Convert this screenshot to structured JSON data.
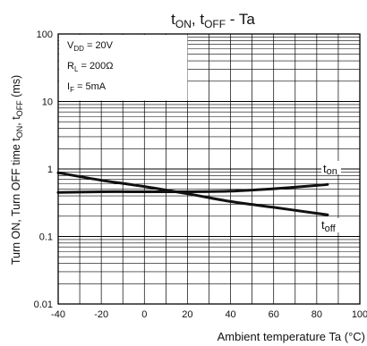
{
  "chart_data": {
    "type": "line",
    "title_main": "t",
    "title_sub_on": "ON",
    "title_mid": ", t",
    "title_sub_off": "OFF",
    "title_end": " - Ta",
    "xlabel": "Ambient temperature Ta (°C)",
    "ylabel_parts": [
      "Turn ON, Turn OFF time t",
      "ON",
      ", t",
      "OFF",
      " (ms)"
    ],
    "x_ticks": [
      -40,
      -20,
      0,
      20,
      40,
      60,
      80,
      100
    ],
    "y_ticks": [
      0.01,
      0.1,
      1,
      10,
      100
    ],
    "y_tick_labels": [
      "0.01",
      "0.1",
      "1",
      "10",
      "100"
    ],
    "xlim": [
      -40,
      100
    ],
    "ylim": [
      0.01,
      100
    ],
    "y_scale": "log",
    "grid": true,
    "conditions": [
      {
        "base": "V",
        "sub": "DD",
        "rest": " = 20V"
      },
      {
        "base": "R",
        "sub": "L",
        "rest": " = 200Ω"
      },
      {
        "base": "I",
        "sub": "F",
        "rest": " = 5mA"
      }
    ],
    "series": [
      {
        "name": "t_on",
        "label_base": "t",
        "label_sub": "on",
        "x": [
          -40,
          -20,
          0,
          20,
          40,
          60,
          80,
          85
        ],
        "values": [
          0.45,
          0.46,
          0.46,
          0.46,
          0.47,
          0.51,
          0.57,
          0.59
        ]
      },
      {
        "name": "t_off",
        "label_base": "t",
        "label_sub": "off",
        "x": [
          -40,
          -20,
          0,
          20,
          40,
          60,
          80,
          85
        ],
        "values": [
          0.88,
          0.68,
          0.55,
          0.43,
          0.33,
          0.27,
          0.22,
          0.21
        ]
      }
    ]
  }
}
